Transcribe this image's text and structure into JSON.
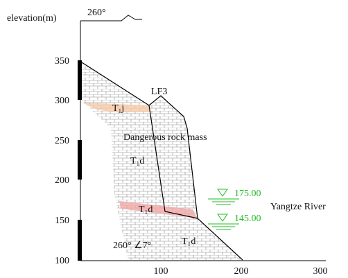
{
  "axis": {
    "y_label": "elevation(m)",
    "direction": "260°",
    "y_ticks": [
      "350",
      "300",
      "250",
      "200",
      "150",
      "100"
    ],
    "x_ticks": [
      "100",
      "200",
      "300"
    ]
  },
  "labels": {
    "fault": "LF3",
    "layer_top": "T₁j",
    "rock_mass": "Dangerous rock mass",
    "layer_1": "T₁d",
    "layer_2": "T₁d",
    "layer_3": "T₁d",
    "attitude": "260° ∠7°"
  },
  "water_levels": [
    "175.00",
    "145.00"
  ],
  "river": "Yangtze River"
}
